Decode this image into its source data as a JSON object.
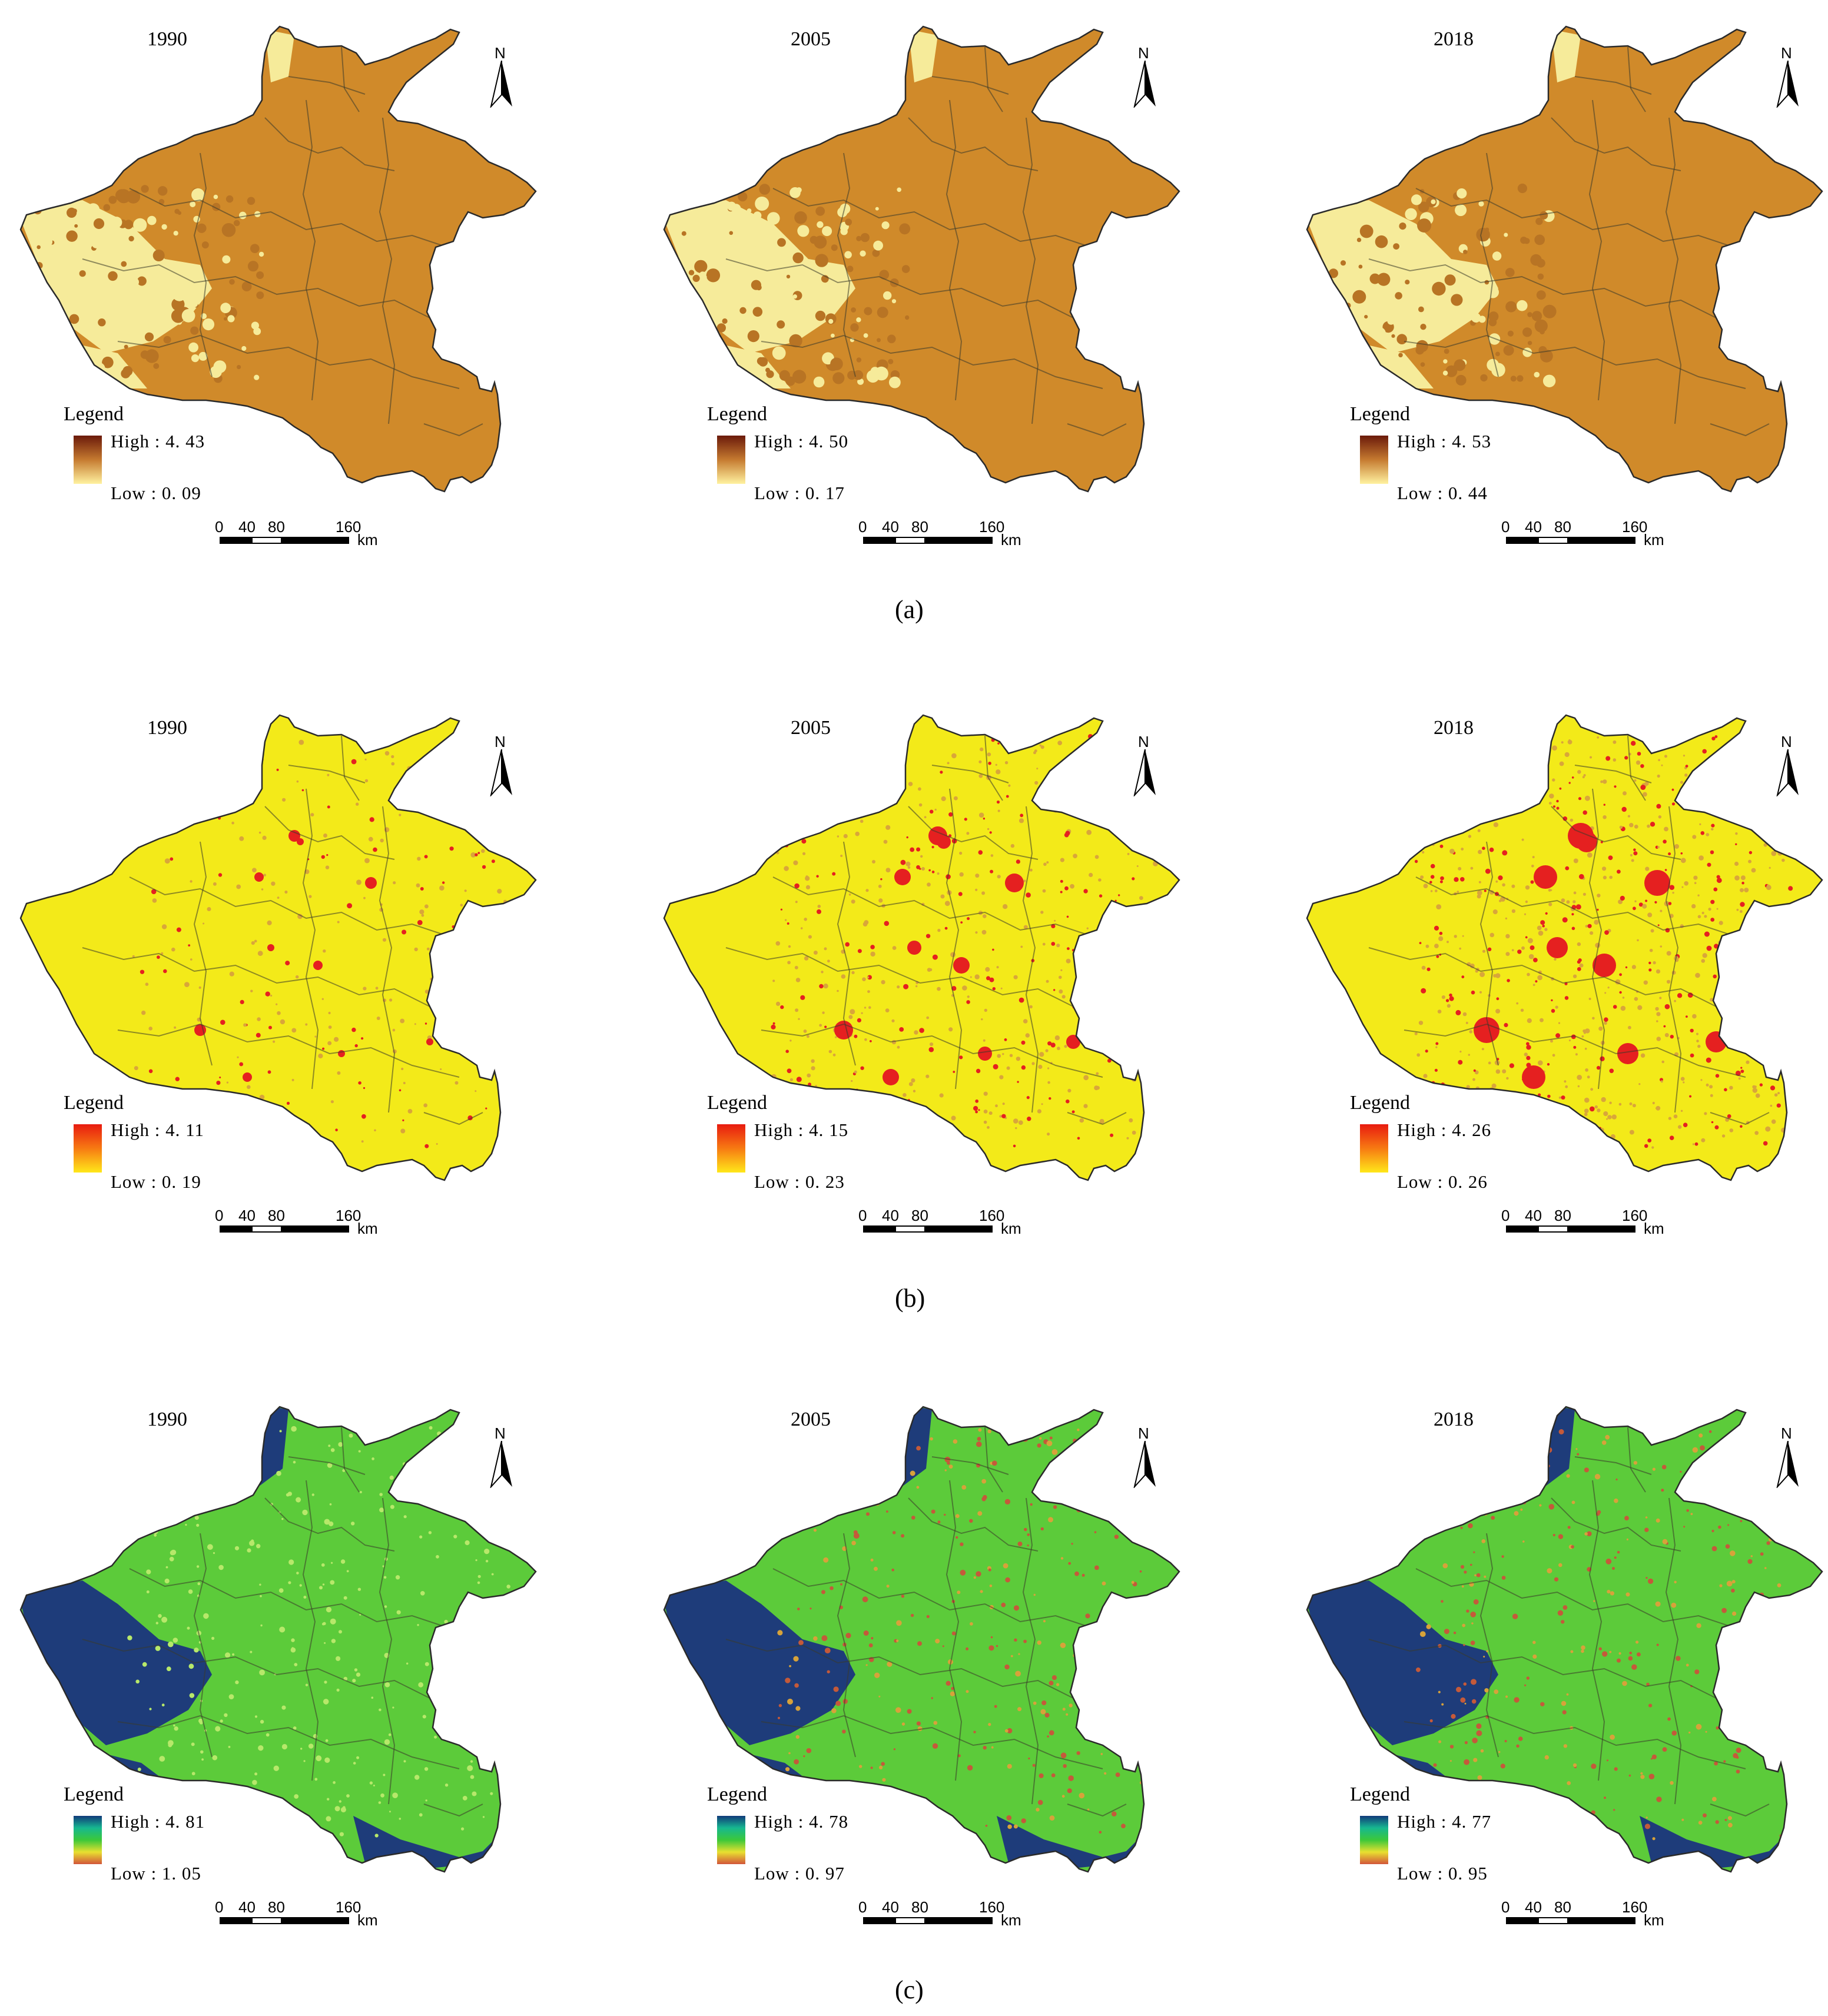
{
  "panels": [
    {
      "caption": "(a)",
      "letter": "a",
      "colors": {
        "fill": "#D08A2A",
        "shade": "#B87424",
        "light": "#F6EB9A",
        "dark": "#7A2A10"
      },
      "legend_gradient": [
        "#6B1A0A",
        "#C57A30",
        "#FFF2A0"
      ],
      "maps": [
        {
          "year": "1990",
          "legend": "Legend",
          "high": "High : 4. 43",
          "low": "Low : 0. 09"
        },
        {
          "year": "2005",
          "legend": "Legend",
          "high": "High : 4. 50",
          "low": "Low : 0. 17"
        },
        {
          "year": "2018",
          "legend": "Legend",
          "high": "High : 4. 53",
          "low": "Low : 0. 44"
        }
      ]
    },
    {
      "caption": "(b)",
      "letter": "b",
      "colors": {
        "fill": "#F3EA19",
        "shade": "#D9A63A",
        "light": "#F9F237",
        "dark": "#E52020"
      },
      "legend_gradient": [
        "#E81B10",
        "#F77A12",
        "#FFE81A"
      ],
      "maps": [
        {
          "year": "1990",
          "legend": "Legend",
          "high": "High : 4. 11",
          "low": "Low : 0. 19"
        },
        {
          "year": "2005",
          "legend": "Legend",
          "high": "High : 4. 15",
          "low": "Low : 0. 23"
        },
        {
          "year": "2018",
          "legend": "Legend",
          "high": "High : 4. 26",
          "low": "Low : 0. 26"
        }
      ]
    },
    {
      "caption": "(c)",
      "letter": "c",
      "colors": {
        "fill": "#5CCB3A",
        "shade": "#1E3C7A",
        "light": "#B7E86A",
        "dark": "#C45A3A"
      },
      "legend_gradient": [
        "#113A7A",
        "#16B890",
        "#3CC83A",
        "#E8E030",
        "#D2553A"
      ],
      "maps": [
        {
          "year": "1990",
          "legend": "Legend",
          "high": "High : 4. 81",
          "low": "Low : 1. 05"
        },
        {
          "year": "2005",
          "legend": "Legend",
          "high": "High : 4. 78",
          "low": "Low : 0. 97"
        },
        {
          "year": "2018",
          "legend": "Legend",
          "high": "High : 4. 77",
          "low": "Low : 0. 95"
        }
      ]
    }
  ],
  "scale_bar": {
    "ticks": [
      "0",
      "40",
      "80",
      "160"
    ],
    "unit": "km"
  },
  "north_label": "N",
  "icons": [
    "north-arrow-icon",
    "scale-bar-icon",
    "legend-gradient"
  ]
}
